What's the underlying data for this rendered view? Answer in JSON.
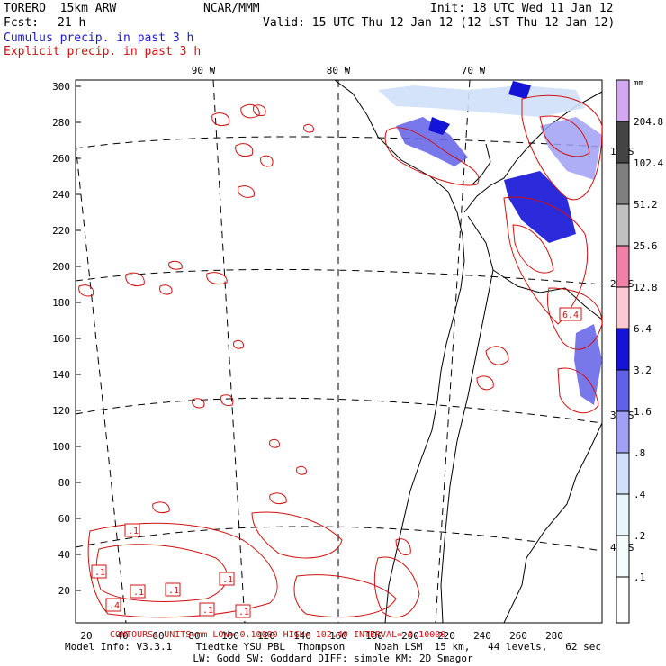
{
  "header": {
    "model": "TORERO  15km ARW",
    "org": "NCAR/MMM",
    "init": "Init: 18 UTC Wed 11 Jan 12",
    "fcst_label": "Fcst:",
    "fcst_value": "21 h",
    "valid": "Valid: 15 UTC Thu 12 Jan 12 (12 LST Thu 12 Jan 12)",
    "subtitle1": "Cumulus precip. in past 3 h",
    "subtitle2": "Explicit precip. in past 3 h"
  },
  "map": {
    "left_axis_ticks": [
      "300",
      "280",
      "260",
      "240",
      "220",
      "200",
      "180",
      "160",
      "140",
      "120",
      "100",
      "80",
      "60",
      "40",
      "20"
    ],
    "bottom_axis_ticks": [
      "20",
      "40",
      "60",
      "80",
      "100",
      "120",
      "140",
      "160",
      "180",
      "200",
      "220",
      "240",
      "260",
      "280"
    ],
    "lon_labels": [
      "90 W",
      "80 W",
      "70 W"
    ],
    "lat_labels": [
      "10 S",
      "20 S",
      "30 S",
      "40 S"
    ],
    "contour_labels": [
      ".1",
      ".1",
      ".1",
      ".1",
      ".1",
      ".4",
      ".1",
      ".1",
      "6.4"
    ],
    "colors": {
      "cumulus": "#1a1acc",
      "explicit": "#d01010"
    }
  },
  "colorbar": {
    "unit": "mm",
    "levels": [
      "204.8",
      "102.4",
      "51.2",
      "25.6",
      "12.8",
      "6.4",
      "3.2",
      "1.6",
      ".8",
      ".4",
      ".2",
      ".1"
    ],
    "colors": [
      "#d4a8f0",
      "#444444",
      "#7f7f7f",
      "#c0c0c0",
      "#f080a8",
      "#fbc8d4",
      "#1414d8",
      "#6060e8",
      "#a0a0f4",
      "#d0e0fa",
      "#e6f6fa",
      "#f4fcfc",
      "#ffffff"
    ]
  },
  "contour_info": "CONTOURS:  UNITS=mm   LOW= 0.10000    HIGH= 102.40    INTERVAL= 0.10000",
  "footer": {
    "line1": "Model Info: V3.3.1    Tiedtke YSU PBL  Thompson     Noah LSM  15 km,   44 levels,   62 sec",
    "line2": "LW: Godd SW: Goddard DIFF: simple KM: 2D Smagor"
  }
}
